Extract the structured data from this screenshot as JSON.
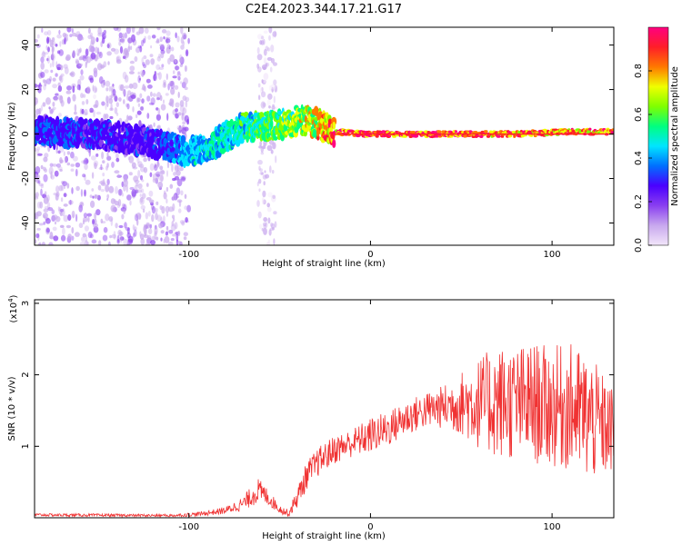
{
  "title": "C2E4.2023.344.17.21.G17",
  "chart_data": [
    {
      "type": "heatmap",
      "xlabel": "Height of straight line (km)",
      "ylabel": "Frequency (Hz)",
      "xlim": [
        -185,
        134
      ],
      "ylim": [
        -50,
        48
      ],
      "xticks": [
        -100,
        0,
        100
      ],
      "xtick_labels": [
        "-100",
        "0",
        "100"
      ],
      "yticks": [
        -40,
        -20,
        0,
        20,
        40
      ],
      "ytick_labels": [
        "-40",
        "-20",
        "0",
        "20",
        "40"
      ],
      "colorbar": {
        "label": "Normalized spectral amplitude",
        "range": [
          0,
          1
        ],
        "ticks": [
          0.0,
          0.2,
          0.4,
          0.6,
          0.8
        ],
        "tick_labels": [
          "0.0",
          "0.2",
          "0.4",
          "0.6",
          "0.8"
        ],
        "colors": [
          "#f2e6fa",
          "#c8a8ee",
          "#8a3ff0",
          "#4a00ff",
          "#0070ff",
          "#00e5ff",
          "#00ff80",
          "#7fff00",
          "#f0ff00",
          "#ff7800",
          "#ff1e28",
          "#ff0080"
        ]
      },
      "features": [
        {
          "name": "diffuse scatter",
          "x_from": -185,
          "x_to": -100,
          "f_min": -50,
          "f_max": 48,
          "amplitude": 0.15
        },
        {
          "name": "secondary streak",
          "x_from": -62,
          "x_to": -52,
          "f_min": -50,
          "f_max": 48,
          "amplitude": 0.1
        },
        {
          "name": "main trace",
          "x": [
            -185,
            -150,
            -120,
            -100,
            -90,
            -70,
            -50,
            -40,
            -33,
            -20,
            0,
            40,
            80,
            110,
            134
          ],
          "f": [
            1,
            0,
            -4,
            -8,
            -6,
            3,
            4,
            6,
            6,
            1,
            0,
            0,
            0,
            1,
            1
          ],
          "amplitude": [
            0.35,
            0.3,
            0.3,
            0.45,
            0.5,
            0.55,
            0.65,
            0.7,
            0.75,
            0.95,
            1.0,
            1.0,
            0.95,
            0.9,
            0.95
          ]
        }
      ]
    },
    {
      "type": "line",
      "xlabel": "Height of straight line (km)",
      "ylabel": "SNR (10 * v/v)",
      "y_exponent": "(x10",
      "y_exponent_power": "4",
      "y_exponent_close": ")",
      "xlim": [
        -185,
        134
      ],
      "ylim": [
        0,
        3.05
      ],
      "xticks": [
        -100,
        0,
        100
      ],
      "xtick_labels": [
        "-100",
        "0",
        "100"
      ],
      "yticks": [
        1,
        2,
        3
      ],
      "ytick_labels": [
        "1",
        "2",
        "3"
      ],
      "series": [
        {
          "name": "SNR",
          "color": "#f03232",
          "envelope_x": [
            -185,
            -110,
            -95,
            -80,
            -70,
            -62,
            -57,
            -50,
            -45,
            -40,
            -35,
            -28,
            -20,
            -10,
            0,
            10,
            20,
            30,
            40,
            50,
            60,
            70,
            80,
            90,
            100,
            110,
            120,
            134
          ],
          "envelope_y": [
            0.04,
            0.03,
            0.05,
            0.1,
            0.2,
            0.38,
            0.3,
            0.12,
            0.06,
            0.3,
            0.6,
            0.8,
            0.95,
            1.05,
            1.15,
            1.25,
            1.4,
            1.5,
            1.55,
            1.6,
            1.6,
            1.62,
            1.6,
            1.6,
            1.55,
            1.55,
            1.4,
            1.2
          ],
          "noise_y": [
            0.02,
            0.02,
            0.03,
            0.05,
            0.1,
            0.18,
            0.12,
            0.06,
            0.05,
            0.15,
            0.2,
            0.2,
            0.2,
            0.2,
            0.25,
            0.25,
            0.25,
            0.25,
            0.3,
            0.45,
            0.65,
            0.8,
            0.8,
            0.85,
            0.85,
            0.9,
            0.9,
            0.6
          ]
        }
      ]
    }
  ]
}
